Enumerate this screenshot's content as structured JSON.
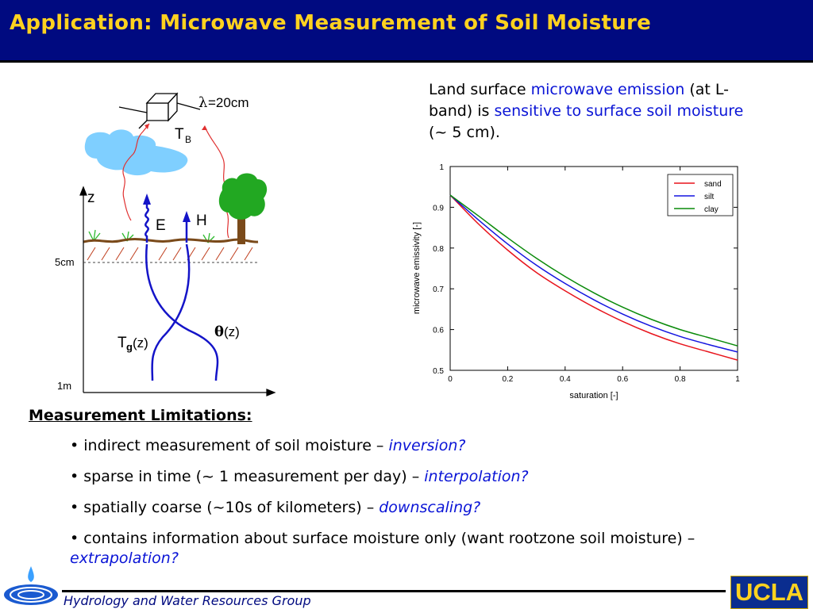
{
  "header": {
    "title": "Application: Microwave Measurement of Soil Moisture"
  },
  "intro": {
    "part1": "Land surface ",
    "part2": "microwave emission",
    "part3": " (at L-band) is ",
    "part4": "sensitive to surface soil moisture",
    "part5": " (~ 5 cm)."
  },
  "diagram": {
    "wavelength_symbol": "λ",
    "wavelength_value": "=20cm",
    "tb_main": "T",
    "tb_sub": "B",
    "z_label": "z",
    "e_label": "E",
    "h_label": "H",
    "depth_5cm": "5cm",
    "depth_1m": "1m",
    "tg_main": "T",
    "tg_sub": "g",
    "tg_arg": "(z)",
    "theta_symbol": "θ",
    "theta_arg": "(z)"
  },
  "chart_data": {
    "type": "line",
    "xlabel": "saturation [-]",
    "ylabel": "microwave emissivity [-]",
    "xlim": [
      0,
      1
    ],
    "ylim": [
      0.5,
      1
    ],
    "xticks": [
      "0",
      "0.2",
      "0.4",
      "0.6",
      "0.8",
      "1"
    ],
    "yticks": [
      "0.5",
      "0.6",
      "0.7",
      "0.8",
      "0.9",
      "1"
    ],
    "x": [
      0,
      0.1,
      0.2,
      0.3,
      0.4,
      0.5,
      0.6,
      0.7,
      0.8,
      0.9,
      1.0
    ],
    "legend_position": "top-right",
    "series": [
      {
        "name": "sand",
        "color": "#e8141c",
        "values": [
          0.93,
          0.858,
          0.795,
          0.74,
          0.695,
          0.655,
          0.62,
          0.59,
          0.565,
          0.545,
          0.525
        ]
      },
      {
        "name": "silt",
        "color": "#1414e0",
        "values": [
          0.93,
          0.868,
          0.81,
          0.758,
          0.713,
          0.673,
          0.638,
          0.608,
          0.583,
          0.563,
          0.545
        ]
      },
      {
        "name": "clay",
        "color": "#0a8a0a",
        "values": [
          0.93,
          0.878,
          0.825,
          0.775,
          0.73,
          0.69,
          0.655,
          0.625,
          0.6,
          0.58,
          0.56
        ]
      }
    ]
  },
  "limitations": {
    "heading": "Measurement Limitations:",
    "items": [
      {
        "text": "• indirect measurement of soil moisture – ",
        "emph": "inversion?"
      },
      {
        "text": "• sparse in time (~ 1 measurement per day) – ",
        "emph": "interpolation?"
      },
      {
        "text": "• spatially coarse (~10s of kilometers) – ",
        "emph": "downscaling?"
      },
      {
        "text": "• contains information about surface moisture only (want rootzone soil moisture) – ",
        "emph": "extrapolation?"
      }
    ]
  },
  "footer": {
    "group_name": "Hydrology and Water Resources Group",
    "logo_text": "UCLA"
  },
  "colors": {
    "header_bg": "#000a80",
    "title": "#ffd21f",
    "accent_blue": "#0a14d6"
  }
}
